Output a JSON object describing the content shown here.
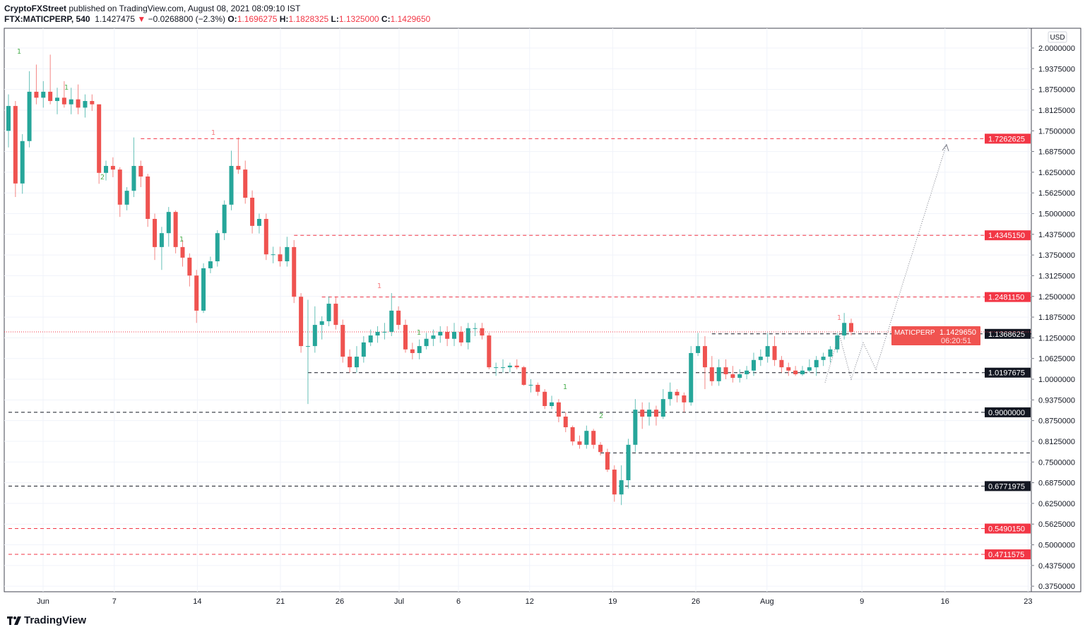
{
  "header": {
    "author": "CryptoFXStreet",
    "published": " published on TradingView.com, August 08, 2021 08:09:10 IST",
    "symbol": "FTX:MATICPERP, 540",
    "last": "1.1427475",
    "change": "−0.0268800 (−2.3%)",
    "o_label": "O:",
    "o": "1.1696275",
    "h_label": "H:",
    "h": "1.1828325",
    "l_label": "L:",
    "l": "1.1325000",
    "c_label": "C:",
    "c": "1.1429650"
  },
  "footer": {
    "brand": "TradingView"
  },
  "colors": {
    "up": "#26a69a",
    "down": "#ef5350",
    "level_red": "#f23645",
    "level_black": "#131722"
  },
  "chart_data": {
    "type": "candlestick",
    "currency": "USD",
    "ylim": [
      0.34,
      2.06
    ],
    "grid": true,
    "y_ticks": [
      "2.0000000",
      "1.9375000",
      "1.8750000",
      "1.8125000",
      "1.7500000",
      "1.6875000",
      "1.6250000",
      "1.5625000",
      "1.5000000",
      "1.4375000",
      "1.3750000",
      "1.3125000",
      "1.2500000",
      "1.1875000",
      "1.1250000",
      "1.0625000",
      "1.0000000",
      "0.9375000",
      "0.8750000",
      "0.8125000",
      "0.7500000",
      "0.6875000",
      "0.6250000",
      "0.5625000",
      "0.5000000",
      "0.4375000",
      "0.3750000"
    ],
    "x_ticks": [
      {
        "label": "Jun",
        "day": 0
      },
      {
        "label": "7",
        "day": 6
      },
      {
        "label": "14",
        "day": 13
      },
      {
        "label": "21",
        "day": 20
      },
      {
        "label": "26",
        "day": 25
      },
      {
        "label": "Jul",
        "day": 30
      },
      {
        "label": "6",
        "day": 35
      },
      {
        "label": "12",
        "day": 41
      },
      {
        "label": "19",
        "day": 48
      },
      {
        "label": "26",
        "day": 55
      },
      {
        "label": "Aug",
        "day": 61
      },
      {
        "label": "9",
        "day": 69
      },
      {
        "label": "16",
        "day": 76
      },
      {
        "label": "23",
        "day": 83
      }
    ],
    "candles": [
      [
        1.75,
        1.86,
        1.7,
        1.825
      ],
      [
        1.825,
        1.84,
        1.55,
        1.591
      ],
      [
        1.591,
        1.74,
        1.56,
        1.719
      ],
      [
        1.719,
        1.93,
        1.7,
        1.868
      ],
      [
        1.868,
        1.95,
        1.83,
        1.85
      ],
      [
        1.85,
        1.9,
        1.82,
        1.868
      ],
      [
        1.868,
        1.98,
        1.83,
        1.84
      ],
      [
        1.84,
        1.88,
        1.8,
        1.85
      ],
      [
        1.85,
        1.9,
        1.82,
        1.83
      ],
      [
        1.83,
        1.88,
        1.8,
        1.845
      ],
      [
        1.845,
        1.89,
        1.8,
        1.82
      ],
      [
        1.82,
        1.86,
        1.79,
        1.84
      ],
      [
        1.84,
        1.86,
        1.81,
        1.83
      ],
      [
        1.83,
        1.83,
        1.59,
        1.623
      ],
      [
        1.623,
        1.66,
        1.6,
        1.644
      ],
      [
        1.644,
        1.67,
        1.61,
        1.633
      ],
      [
        1.633,
        1.64,
        1.49,
        1.527
      ],
      [
        1.527,
        1.58,
        1.51,
        1.569
      ],
      [
        1.569,
        1.73,
        1.55,
        1.644
      ],
      [
        1.644,
        1.66,
        1.58,
        1.612
      ],
      [
        1.612,
        1.62,
        1.46,
        1.484
      ],
      [
        1.484,
        1.5,
        1.36,
        1.399
      ],
      [
        1.399,
        1.46,
        1.33,
        1.441
      ],
      [
        1.441,
        1.52,
        1.4,
        1.505
      ],
      [
        1.505,
        1.51,
        1.38,
        1.399
      ],
      [
        1.399,
        1.42,
        1.34,
        1.367
      ],
      [
        1.367,
        1.38,
        1.28,
        1.313
      ],
      [
        1.313,
        1.33,
        1.17,
        1.207
      ],
      [
        1.207,
        1.35,
        1.2,
        1.335
      ],
      [
        1.335,
        1.37,
        1.32,
        1.356
      ],
      [
        1.356,
        1.45,
        1.34,
        1.441
      ],
      [
        1.441,
        1.54,
        1.42,
        1.527
      ],
      [
        1.527,
        1.69,
        1.51,
        1.644
      ],
      [
        1.644,
        1.73,
        1.62,
        1.633
      ],
      [
        1.633,
        1.66,
        1.53,
        1.548
      ],
      [
        1.548,
        1.57,
        1.44,
        1.463
      ],
      [
        1.463,
        1.5,
        1.44,
        1.484
      ],
      [
        1.484,
        1.5,
        1.36,
        1.377
      ],
      [
        1.377,
        1.4,
        1.35,
        1.377
      ],
      [
        1.377,
        1.4,
        1.34,
        1.356
      ],
      [
        1.356,
        1.43,
        1.34,
        1.399
      ],
      [
        1.399,
        1.42,
        1.23,
        1.249
      ],
      [
        1.249,
        1.26,
        1.08,
        1.1
      ],
      [
        1.1,
        1.24,
        0.925,
        1.1
      ],
      [
        1.1,
        1.22,
        1.08,
        1.164
      ],
      [
        1.164,
        1.19,
        1.12,
        1.175
      ],
      [
        1.175,
        1.25,
        1.16,
        1.228
      ],
      [
        1.228,
        1.25,
        1.15,
        1.164
      ],
      [
        1.164,
        1.18,
        1.05,
        1.068
      ],
      [
        1.068,
        1.09,
        1.02,
        1.036
      ],
      [
        1.036,
        1.1,
        1.02,
        1.068
      ],
      [
        1.068,
        1.13,
        1.05,
        1.111
      ],
      [
        1.111,
        1.15,
        1.1,
        1.132
      ],
      [
        1.132,
        1.16,
        1.11,
        1.143
      ],
      [
        1.143,
        1.17,
        1.12,
        1.143
      ],
      [
        1.143,
        1.26,
        1.13,
        1.207
      ],
      [
        1.207,
        1.22,
        1.15,
        1.164
      ],
      [
        1.164,
        1.18,
        1.08,
        1.09
      ],
      [
        1.09,
        1.11,
        1.06,
        1.079
      ],
      [
        1.079,
        1.12,
        1.06,
        1.1
      ],
      [
        1.1,
        1.14,
        1.09,
        1.122
      ],
      [
        1.122,
        1.15,
        1.1,
        1.132
      ],
      [
        1.132,
        1.16,
        1.11,
        1.143
      ],
      [
        1.143,
        1.16,
        1.1,
        1.122
      ],
      [
        1.122,
        1.17,
        1.1,
        1.143
      ],
      [
        1.143,
        1.16,
        1.1,
        1.111
      ],
      [
        1.111,
        1.17,
        1.09,
        1.154
      ],
      [
        1.154,
        1.17,
        1.13,
        1.154
      ],
      [
        1.154,
        1.17,
        1.12,
        1.132
      ],
      [
        1.132,
        1.14,
        1.03,
        1.036
      ],
      [
        1.036,
        1.05,
        1.01,
        1.036
      ],
      [
        1.036,
        1.06,
        1.02,
        1.036
      ],
      [
        1.036,
        1.05,
        1.02,
        1.041
      ],
      [
        1.041,
        1.06,
        1.03,
        1.036
      ],
      [
        1.036,
        1.04,
        0.98,
        0.983
      ],
      [
        0.983,
        1.0,
        0.96,
        0.983
      ],
      [
        0.983,
        0.99,
        0.95,
        0.962
      ],
      [
        0.962,
        0.97,
        0.91,
        0.919
      ],
      [
        0.919,
        0.95,
        0.91,
        0.93
      ],
      [
        0.93,
        0.94,
        0.87,
        0.887
      ],
      [
        0.887,
        0.9,
        0.84,
        0.855
      ],
      [
        0.855,
        0.86,
        0.8,
        0.812
      ],
      [
        0.812,
        0.83,
        0.79,
        0.802
      ],
      [
        0.802,
        0.86,
        0.79,
        0.844
      ],
      [
        0.844,
        0.85,
        0.79,
        0.802
      ],
      [
        0.802,
        0.81,
        0.77,
        0.78
      ],
      [
        0.78,
        0.79,
        0.72,
        0.727
      ],
      [
        0.727,
        0.74,
        0.63,
        0.652
      ],
      [
        0.652,
        0.74,
        0.62,
        0.695
      ],
      [
        0.695,
        0.82,
        0.67,
        0.802
      ],
      [
        0.802,
        0.94,
        0.78,
        0.908
      ],
      [
        0.908,
        0.93,
        0.85,
        0.887
      ],
      [
        0.887,
        0.93,
        0.86,
        0.908
      ],
      [
        0.908,
        0.92,
        0.86,
        0.887
      ],
      [
        0.887,
        0.97,
        0.88,
        0.94
      ],
      [
        0.94,
        0.99,
        0.92,
        0.962
      ],
      [
        0.962,
        0.97,
        0.93,
        0.951
      ],
      [
        0.951,
        0.96,
        0.9,
        0.93
      ],
      [
        0.93,
        1.1,
        0.92,
        1.079
      ],
      [
        1.079,
        1.14,
        1.07,
        1.1
      ],
      [
        1.1,
        1.13,
        0.97,
        1.036
      ],
      [
        1.036,
        1.07,
        0.98,
        0.994
      ],
      [
        0.994,
        1.06,
        0.98,
        1.036
      ],
      [
        1.036,
        1.06,
        1.0,
        1.015
      ],
      [
        1.015,
        1.04,
        0.99,
        1.004
      ],
      [
        1.004,
        1.03,
        0.99,
        1.015
      ],
      [
        1.015,
        1.04,
        1.0,
        1.026
      ],
      [
        1.026,
        1.08,
        1.01,
        1.058
      ],
      [
        1.058,
        1.09,
        1.04,
        1.068
      ],
      [
        1.068,
        1.14,
        1.05,
        1.1
      ],
      [
        1.1,
        1.13,
        1.04,
        1.058
      ],
      [
        1.058,
        1.07,
        1.02,
        1.036
      ],
      [
        1.036,
        1.05,
        1.01,
        1.026
      ],
      [
        1.026,
        1.04,
        1.01,
        1.015
      ],
      [
        1.015,
        1.04,
        1.01,
        1.026
      ],
      [
        1.026,
        1.06,
        1.02,
        1.036
      ],
      [
        1.036,
        1.07,
        1.01,
        1.058
      ],
      [
        1.058,
        1.08,
        1.04,
        1.068
      ],
      [
        1.068,
        1.1,
        1.05,
        1.09
      ],
      [
        1.09,
        1.14,
        1.08,
        1.132
      ],
      [
        1.132,
        1.2,
        1.12,
        1.17
      ],
      [
        1.1696275,
        1.1828325,
        1.1325,
        1.142965
      ]
    ],
    "levels": [
      {
        "price": 1.7262625,
        "label": "1.7262625",
        "color": "red",
        "from_candle": 19
      },
      {
        "price": 1.434515,
        "label": "1.4345150",
        "color": "red",
        "from_candle": 41
      },
      {
        "price": 1.248115,
        "label": "1.2481150",
        "color": "red",
        "from_candle": 45
      },
      {
        "price": 1.1368625,
        "label": "1.1368625",
        "color": "black",
        "from_candle": 101
      },
      {
        "price": 1.0197675,
        "label": "1.0197675",
        "color": "black",
        "from_candle": 43
      },
      {
        "price": 0.9,
        "label": "0.9000000",
        "color": "black",
        "from_candle": 0
      },
      {
        "price": 0.7775,
        "label": "",
        "color": "black",
        "from_candle": 85
      },
      {
        "price": 0.6771975,
        "label": "0.6771975",
        "color": "black",
        "from_candle": 0
      },
      {
        "price": 0.549015,
        "label": "0.5490150",
        "color": "red",
        "from_candle": 0
      },
      {
        "price": 0.4711575,
        "label": "0.4711575",
        "color": "red",
        "from_candle": 0
      }
    ],
    "last_price": {
      "symbol": "MATICPERP",
      "price": 1.142965,
      "label": "1.1429650",
      "countdown": "06:20:51"
    },
    "projection": [
      [
        0.99,
        1.0
      ],
      [
        1.1368625,
        1.0
      ],
      [
        1.0,
        1.0
      ],
      [
        1.11,
        1.0
      ],
      [
        1.03,
        1.0
      ],
      [
        1.71,
        1.0
      ]
    ],
    "td_counts": [
      {
        "text": "1",
        "color": "green"
      },
      {
        "text": "1",
        "color": "green"
      },
      {
        "text": "2",
        "color": "green"
      },
      {
        "text": "1",
        "color": "red"
      },
      {
        "text": "1",
        "color": "green"
      },
      {
        "text": "1",
        "color": "red"
      },
      {
        "text": "1",
        "color": "green"
      },
      {
        "text": "1",
        "color": "green"
      },
      {
        "text": "2",
        "color": "green"
      },
      {
        "text": "1",
        "color": "red"
      }
    ]
  }
}
